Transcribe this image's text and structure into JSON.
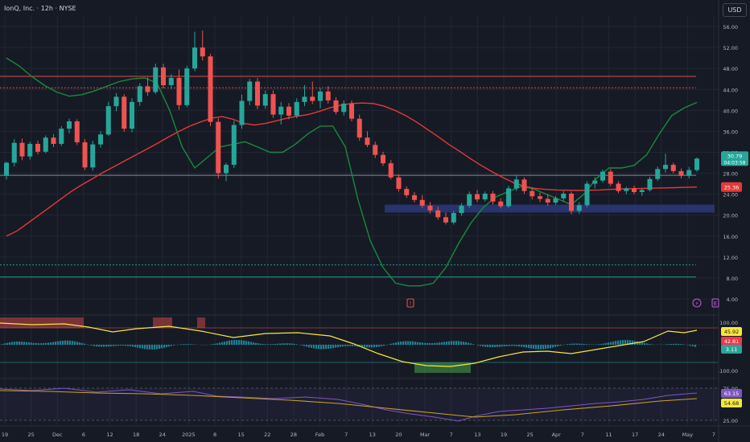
{
  "header": {
    "title": "IonQ, Inc. · 12h · NYSE",
    "currency": "USD"
  },
  "colors": {
    "bg": "#161a25",
    "grid": "#232733",
    "up": "#26a69a",
    "down": "#ef5350",
    "ma_red": "#e53935",
    "ma_green": "#1b8a3a",
    "pane_border": "#2a2e39"
  },
  "chart_data": {
    "type": "candlestick",
    "title": "IonQ, Inc. · 12h · NYSE",
    "x_tick_labels": [
      "19",
      "25",
      "Dec",
      "6",
      "12",
      "18",
      "24",
      "2025",
      "8",
      "15",
      "22",
      "28",
      "Feb",
      "7",
      "13",
      "20",
      "Mar",
      "7",
      "13",
      "19",
      "25",
      "Apr",
      "7",
      "11",
      "17",
      "24",
      "May",
      "7"
    ],
    "y_tick_labels": [
      "56.00",
      "52.00",
      "48.00",
      "44.00",
      "40.00",
      "36.00",
      "32.00",
      "28.00",
      "24.00",
      "20.00",
      "16.00",
      "12.00",
      "8.00",
      "4.00"
    ],
    "ylim": [
      2,
      58
    ],
    "last_price": "30.79",
    "countdown": "04:03:58",
    "ma_value_label": "25.36",
    "horizontal_levels": [
      {
        "value": 46.5,
        "color": "#ef5350",
        "style": "solid"
      },
      {
        "value": 44.3,
        "color": "#ef5350",
        "style": "dotted"
      },
      {
        "value": 27.6,
        "color": "#9598a1",
        "style": "solid"
      },
      {
        "value": 10.5,
        "color": "#26a69a",
        "style": "dotted"
      },
      {
        "value": 8.2,
        "color": "#26a69a",
        "style": "solid"
      }
    ],
    "support_zone": {
      "from": 20.5,
      "to": 22.0,
      "color": "#2a3a7a"
    },
    "candles": [
      [
        27.5,
        30.2,
        26.8,
        30.0
      ],
      [
        30.0,
        34.5,
        29.3,
        33.8
      ],
      [
        33.8,
        34.6,
        30.5,
        31.2
      ],
      [
        31.2,
        34.0,
        30.6,
        33.6
      ],
      [
        33.6,
        34.2,
        31.6,
        32.1
      ],
      [
        32.1,
        35.2,
        31.8,
        34.8
      ],
      [
        34.8,
        35.5,
        33.0,
        33.6
      ],
      [
        33.6,
        37.0,
        33.2,
        36.5
      ],
      [
        36.5,
        38.4,
        35.6,
        37.9
      ],
      [
        37.9,
        38.3,
        33.4,
        33.9
      ],
      [
        33.9,
        34.5,
        28.6,
        29.1
      ],
      [
        29.1,
        34.2,
        28.5,
        33.5
      ],
      [
        33.5,
        36.0,
        32.9,
        35.4
      ],
      [
        35.4,
        41.6,
        35.1,
        40.8
      ],
      [
        40.8,
        43.3,
        39.8,
        42.6
      ],
      [
        42.6,
        43.1,
        35.9,
        36.5
      ],
      [
        36.5,
        42.3,
        35.8,
        41.6
      ],
      [
        41.6,
        45.2,
        40.9,
        44.6
      ],
      [
        44.6,
        46.3,
        42.8,
        43.5
      ],
      [
        43.5,
        48.9,
        43.1,
        48.2
      ],
      [
        48.2,
        48.9,
        44.2,
        44.8
      ],
      [
        44.8,
        46.9,
        44.1,
        46.2
      ],
      [
        46.2,
        47.8,
        40.1,
        41.0
      ],
      [
        41.0,
        48.5,
        40.6,
        48.0
      ],
      [
        48.0,
        55.0,
        47.5,
        52.0
      ],
      [
        52.0,
        55.2,
        49.5,
        50.3
      ],
      [
        50.3,
        50.8,
        37.0,
        37.8
      ],
      [
        37.8,
        38.5,
        27.0,
        28.0
      ],
      [
        28.0,
        30.0,
        26.5,
        29.6
      ],
      [
        29.6,
        38.0,
        29.0,
        37.2
      ],
      [
        37.2,
        43.0,
        36.5,
        41.8
      ],
      [
        41.8,
        46.0,
        41.0,
        45.5
      ],
      [
        45.5,
        46.2,
        40.2,
        40.9
      ],
      [
        40.9,
        43.8,
        40.3,
        43.1
      ],
      [
        43.1,
        43.8,
        38.6,
        39.2
      ],
      [
        39.2,
        41.6,
        37.3,
        40.7
      ],
      [
        40.7,
        41.4,
        38.3,
        39.0
      ],
      [
        39.0,
        42.3,
        38.5,
        41.6
      ],
      [
        41.6,
        44.8,
        40.8,
        42.6
      ],
      [
        42.6,
        45.5,
        41.2,
        41.8
      ],
      [
        41.8,
        44.3,
        40.4,
        43.6
      ],
      [
        43.6,
        44.6,
        41.3,
        41.9
      ],
      [
        41.9,
        42.5,
        39.2,
        39.7
      ],
      [
        39.7,
        41.9,
        39.0,
        41.3
      ],
      [
        41.3,
        41.9,
        37.9,
        38.4
      ],
      [
        38.4,
        39.2,
        34.2,
        34.8
      ],
      [
        34.8,
        36.0,
        33.0,
        33.4
      ],
      [
        33.4,
        34.0,
        30.9,
        31.5
      ],
      [
        31.5,
        32.1,
        29.4,
        29.9
      ],
      [
        29.9,
        30.5,
        26.8,
        27.2
      ],
      [
        27.2,
        27.8,
        24.5,
        25.0
      ],
      [
        25.0,
        25.5,
        23.3,
        23.8
      ],
      [
        23.8,
        24.4,
        22.4,
        22.9
      ],
      [
        22.9,
        23.8,
        21.4,
        21.8
      ],
      [
        21.8,
        22.5,
        20.3,
        20.9
      ],
      [
        20.9,
        21.6,
        19.1,
        19.6
      ],
      [
        19.6,
        20.5,
        18.2,
        18.6
      ],
      [
        18.6,
        20.8,
        18.2,
        20.4
      ],
      [
        20.4,
        22.3,
        19.9,
        21.8
      ],
      [
        21.8,
        24.5,
        21.4,
        24.0
      ],
      [
        24.0,
        24.8,
        22.5,
        23.0
      ],
      [
        23.0,
        24.5,
        22.6,
        24.1
      ],
      [
        24.1,
        24.6,
        22.0,
        22.6
      ],
      [
        22.6,
        23.2,
        21.3,
        21.7
      ],
      [
        21.7,
        25.6,
        21.4,
        25.1
      ],
      [
        25.1,
        27.6,
        24.6,
        26.8
      ],
      [
        26.8,
        27.2,
        24.1,
        24.6
      ],
      [
        24.6,
        25.2,
        23.0,
        23.6
      ],
      [
        23.6,
        24.3,
        22.5,
        23.1
      ],
      [
        23.1,
        24.0,
        21.8,
        22.4
      ],
      [
        22.4,
        23.6,
        22.0,
        23.2
      ],
      [
        23.2,
        24.6,
        22.6,
        24.1
      ],
      [
        24.1,
        24.5,
        20.2,
        20.8
      ],
      [
        20.8,
        22.5,
        20.3,
        21.9
      ],
      [
        21.9,
        26.5,
        21.5,
        26.0
      ],
      [
        26.0,
        27.2,
        25.1,
        26.6
      ],
      [
        26.6,
        28.7,
        26.2,
        28.3
      ],
      [
        28.3,
        28.8,
        25.5,
        26.0
      ],
      [
        26.0,
        26.5,
        24.2,
        24.6
      ],
      [
        24.6,
        25.4,
        24.0,
        25.1
      ],
      [
        25.1,
        25.6,
        24.0,
        24.4
      ],
      [
        24.4,
        25.1,
        23.7,
        24.8
      ],
      [
        24.8,
        27.3,
        24.5,
        26.9
      ],
      [
        26.9,
        29.3,
        26.5,
        28.8
      ],
      [
        28.8,
        31.7,
        28.1,
        29.6
      ],
      [
        29.6,
        30.0,
        28.0,
        28.4
      ],
      [
        28.4,
        28.9,
        27.0,
        27.5
      ],
      [
        27.5,
        29.2,
        27.0,
        28.6
      ],
      [
        28.6,
        31.0,
        28.3,
        30.79
      ]
    ],
    "ma_red_values": [
      16,
      17,
      18.5,
      20,
      21.5,
      23,
      24.5,
      25.8,
      27,
      28.2,
      29.3,
      30.4,
      31.5,
      32.6,
      33.7,
      34.9,
      36,
      37,
      37.8,
      38.5,
      38.8,
      38.3,
      37.5,
      37.2,
      37.5,
      38,
      38.5,
      38.9,
      39.2,
      39.8,
      40.5,
      41,
      41.3,
      41.4,
      41.3,
      40.8,
      40,
      39,
      37.8,
      36.4,
      35,
      33.5,
      32.2,
      30.8,
      29.5,
      28.3,
      27.2,
      26.2,
      25.5,
      25.1,
      24.9,
      24.8,
      24.75,
      24.7,
      24.75,
      24.8,
      24.9,
      25.0,
      25.05,
      25.1,
      25.15,
      25.2,
      25.25,
      25.3,
      25.36
    ],
    "ma_green_values": [
      50,
      48.5,
      46.5,
      44.8,
      43.5,
      42.7,
      43.0,
      43.7,
      44.6,
      45.5,
      46,
      46.2,
      45.2,
      40,
      33,
      29,
      31,
      33,
      33.5,
      34,
      33,
      32,
      32,
      33.5,
      35.5,
      37,
      37,
      33,
      23,
      15,
      10,
      7,
      6.5,
      6.5,
      7,
      10,
      14.5,
      18.5,
      21.5,
      23.5,
      24.5,
      25.5,
      25,
      24,
      23,
      22,
      24,
      27,
      29,
      29,
      29.5,
      31.5,
      35.5,
      39,
      40.5,
      41.5
    ],
    "indicator1": {
      "levels": [
        "100.00",
        "-100.00"
      ],
      "labels": [
        "45.92",
        "42.81",
        "3.11"
      ],
      "label_colors": [
        "#f6e73c",
        "#f23645",
        "#26a69a"
      ]
    },
    "indicator2": {
      "levels": [
        "75.00",
        "25.00"
      ],
      "labels": [
        "63.15",
        "54.68"
      ],
      "label_colors": [
        "#7e57c2",
        "#f6e73c"
      ]
    }
  }
}
